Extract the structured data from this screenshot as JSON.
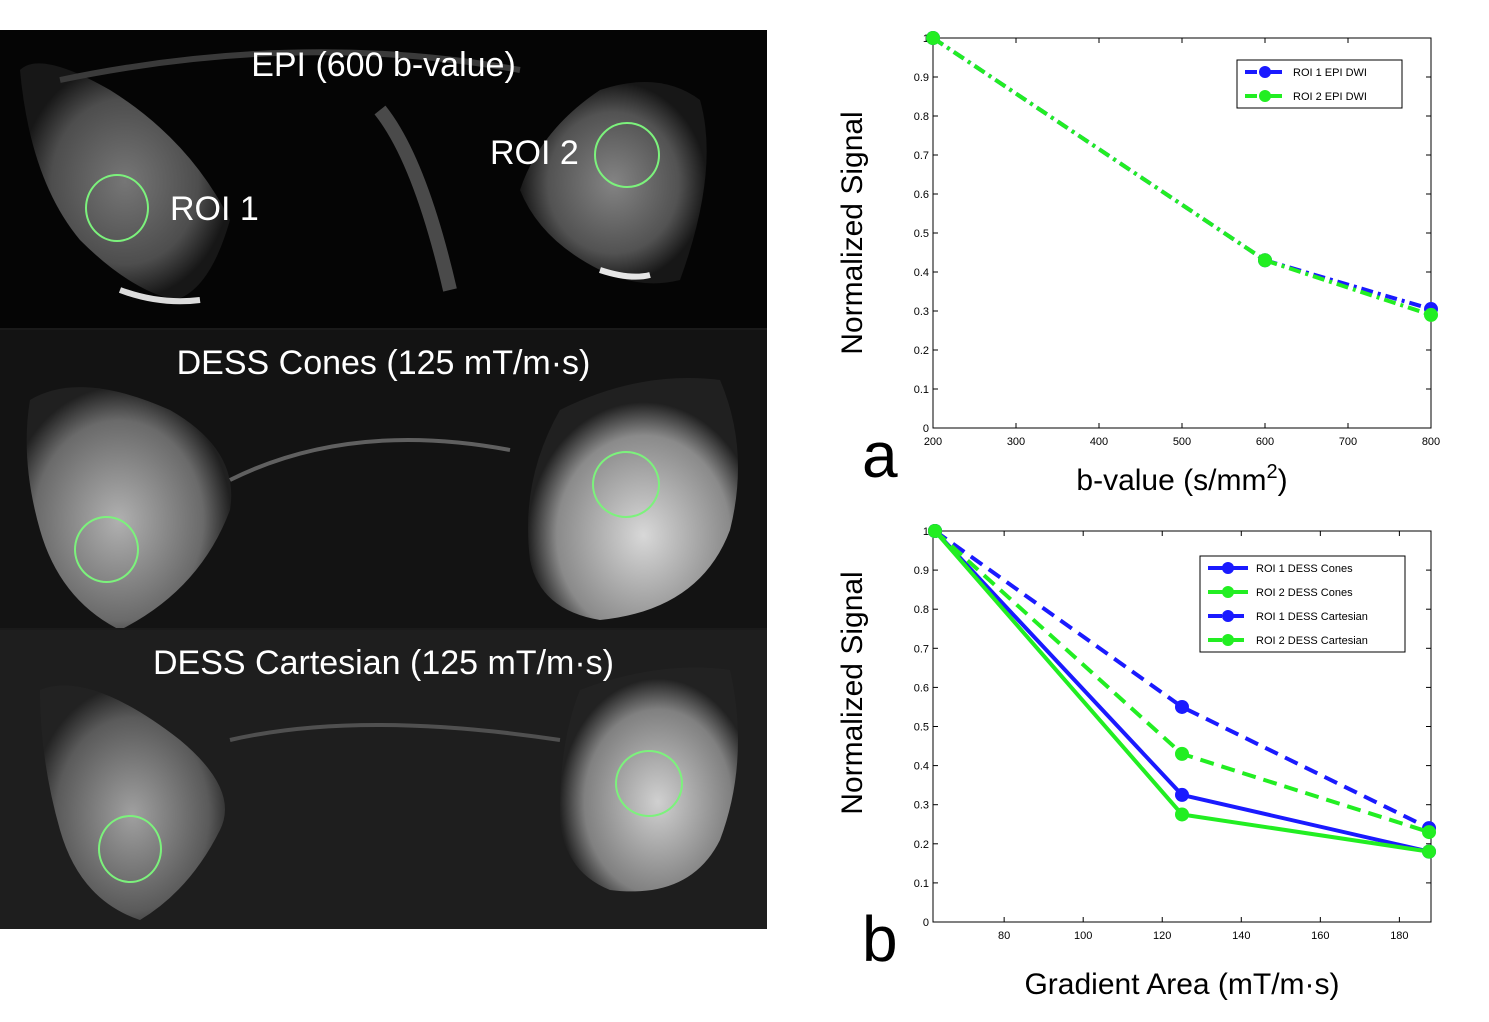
{
  "mri_images": [
    {
      "title": "EPI (600 b-value)",
      "roi_labels": [
        "ROI 1",
        "ROI 2"
      ]
    },
    {
      "title": "DESS Cones (125 mT/m·s)",
      "roi_labels": []
    },
    {
      "title": "DESS Cartesian (125 mT/m·s)",
      "roi_labels": []
    }
  ],
  "colors": {
    "roi_circle": "#7cf27c",
    "blue": "#1a1aff",
    "green": "#22ee22"
  },
  "chart_data": [
    {
      "type": "line",
      "panel_label": "a",
      "title": "",
      "xlabel": "b-value (s/mm",
      "xlabel_sup": "2",
      "xlabel_end": ")",
      "ylabel": "Normalized  Signal",
      "xlim": [
        200,
        800
      ],
      "ylim": [
        0,
        1
      ],
      "xticks": [
        200,
        300,
        400,
        500,
        600,
        700,
        800
      ],
      "yticks": [
        0,
        0.1,
        0.2,
        0.3,
        0.4,
        0.5,
        0.6,
        0.7,
        0.8,
        0.9,
        1
      ],
      "grid": false,
      "legend_position": "top-right",
      "series": [
        {
          "name": "ROI 1 EPI DWI",
          "color": "#1a1aff",
          "style": "dashdot",
          "x": [
            200,
            600,
            800
          ],
          "values": [
            1.0,
            0.43,
            0.305
          ]
        },
        {
          "name": "ROI 2  EPI DWI",
          "color": "#22ee22",
          "style": "dashdot",
          "x": [
            200,
            600,
            800
          ],
          "values": [
            1.0,
            0.43,
            0.29
          ]
        }
      ]
    },
    {
      "type": "line",
      "panel_label": "b",
      "title": "",
      "xlabel": "Gradient Area (mT/m·s)",
      "ylabel": "Normalized  Signal",
      "xlim": [
        62,
        188
      ],
      "ylim": [
        0,
        1
      ],
      "xticks": [
        80,
        100,
        120,
        140,
        160,
        180
      ],
      "yticks": [
        0,
        0.1,
        0.2,
        0.3,
        0.4,
        0.5,
        0.6,
        0.7,
        0.8,
        0.9,
        1
      ],
      "grid": false,
      "legend_position": "top-right",
      "series": [
        {
          "name": "ROI 1 DESS Cones",
          "color": "#1a1aff",
          "style": "solid",
          "x": [
            62.5,
            125,
            187.5
          ],
          "values": [
            1.0,
            0.325,
            0.18
          ]
        },
        {
          "name": "ROI 2 DESS Cones",
          "color": "#22ee22",
          "style": "solid",
          "x": [
            62.5,
            125,
            187.5
          ],
          "values": [
            1.0,
            0.275,
            0.18
          ]
        },
        {
          "name": "ROI 1 DESS Cartesian",
          "color": "#1a1aff",
          "style": "dashed",
          "x": [
            62.5,
            125,
            187.5
          ],
          "values": [
            1.0,
            0.55,
            0.24
          ]
        },
        {
          "name": "ROI 2 DESS Cartesian",
          "color": "#22ee22",
          "style": "dashed",
          "x": [
            62.5,
            125,
            187.5
          ],
          "values": [
            1.0,
            0.43,
            0.23
          ]
        }
      ]
    }
  ]
}
